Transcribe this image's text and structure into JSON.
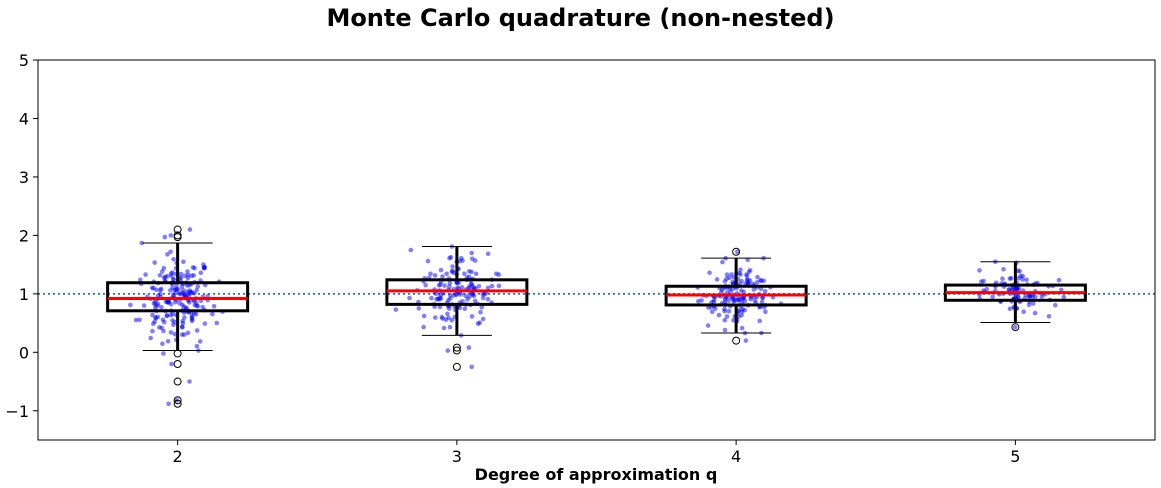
{
  "chart_data": {
    "type": "box",
    "title": "Monte Carlo quadrature (non-nested)",
    "xlabel": "Degree of approximation q",
    "ylabel": "",
    "categories": [
      "2",
      "3",
      "4",
      "5"
    ],
    "xlim": [
      1.5,
      5.5
    ],
    "ylim": [
      -1.5,
      5
    ],
    "yticks": [
      -1,
      0,
      1,
      2,
      3,
      4,
      5
    ],
    "reference_line": {
      "y": 1.0,
      "style": "dotted",
      "color": "#1f77b4"
    },
    "grid": false,
    "boxes": [
      {
        "category": "2",
        "whisker_low": 0.03,
        "q1": 0.71,
        "median": 0.92,
        "q3": 1.19,
        "whisker_high": 1.87,
        "outliers": [
          2.1,
          2.0,
          1.97,
          -0.02,
          -0.2,
          -0.5,
          -0.82,
          -0.88
        ]
      },
      {
        "category": "3",
        "whisker_low": 0.29,
        "q1": 0.82,
        "median": 1.05,
        "q3": 1.24,
        "whisker_high": 1.81,
        "outliers": [
          0.08,
          0.03,
          -0.25
        ]
      },
      {
        "category": "4",
        "whisker_low": 0.33,
        "q1": 0.81,
        "median": 0.98,
        "q3": 1.13,
        "whisker_high": 1.61,
        "outliers": [
          1.72,
          0.2
        ]
      },
      {
        "category": "5",
        "whisker_low": 0.51,
        "q1": 0.89,
        "median": 1.02,
        "q3": 1.15,
        "whisker_high": 1.55,
        "outliers": [
          0.43
        ]
      }
    ],
    "jitter_points": [
      {
        "category": "2",
        "n": 200,
        "color": "#0000ff",
        "opacity": 0.5
      },
      {
        "category": "3",
        "n": 150,
        "color": "#0000ff",
        "opacity": 0.5
      },
      {
        "category": "4",
        "n": 150,
        "color": "#0000ff",
        "opacity": 0.5
      },
      {
        "category": "5",
        "n": 100,
        "color": "#0000ff",
        "opacity": 0.5
      }
    ],
    "colors": {
      "box": "#000000",
      "median": "#ff0000",
      "points": "#0000ff",
      "reference": "#1f77b4"
    }
  }
}
